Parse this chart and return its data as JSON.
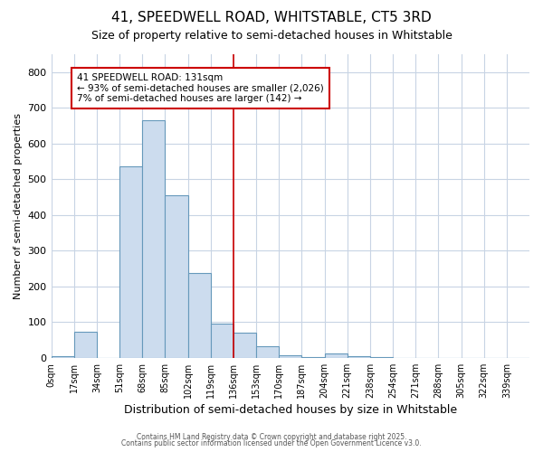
{
  "title": "41, SPEEDWELL ROAD, WHITSTABLE, CT5 3RD",
  "subtitle": "Size of property relative to semi-detached houses in Whitstable",
  "xlabel": "Distribution of semi-detached houses by size in Whitstable",
  "ylabel": "Number of semi-detached properties",
  "bin_labels": [
    "0sqm",
    "17sqm",
    "34sqm",
    "51sqm",
    "68sqm",
    "85sqm",
    "102sqm",
    "119sqm",
    "136sqm",
    "153sqm",
    "170sqm",
    "187sqm",
    "204sqm",
    "221sqm",
    "238sqm",
    "254sqm",
    "271sqm",
    "288sqm",
    "305sqm",
    "322sqm",
    "339sqm"
  ],
  "bar_heights": [
    5,
    72,
    0,
    535,
    665,
    455,
    237,
    95,
    70,
    33,
    8,
    3,
    12,
    5,
    3,
    0,
    0,
    0,
    0,
    0,
    0
  ],
  "bar_color": "#ccdcee",
  "bar_edge_color": "#6699bb",
  "grid_color": "#c8d4e4",
  "background_color": "#ffffff",
  "property_line_x": 8.0,
  "property_line_color": "#cc0000",
  "annotation_text": "41 SPEEDWELL ROAD: 131sqm\n← 93% of semi-detached houses are smaller (2,026)\n7% of semi-detached houses are larger (142) →",
  "annotation_box_facecolor": "#ffffff",
  "annotation_border_color": "#cc0000",
  "ylim": [
    0,
    850
  ],
  "yticks": [
    0,
    100,
    200,
    300,
    400,
    500,
    600,
    700,
    800
  ],
  "footer1": "Contains HM Land Registry data © Crown copyright and database right 2025.",
  "footer2": "Contains public sector information licensed under the Open Government Licence v3.0."
}
